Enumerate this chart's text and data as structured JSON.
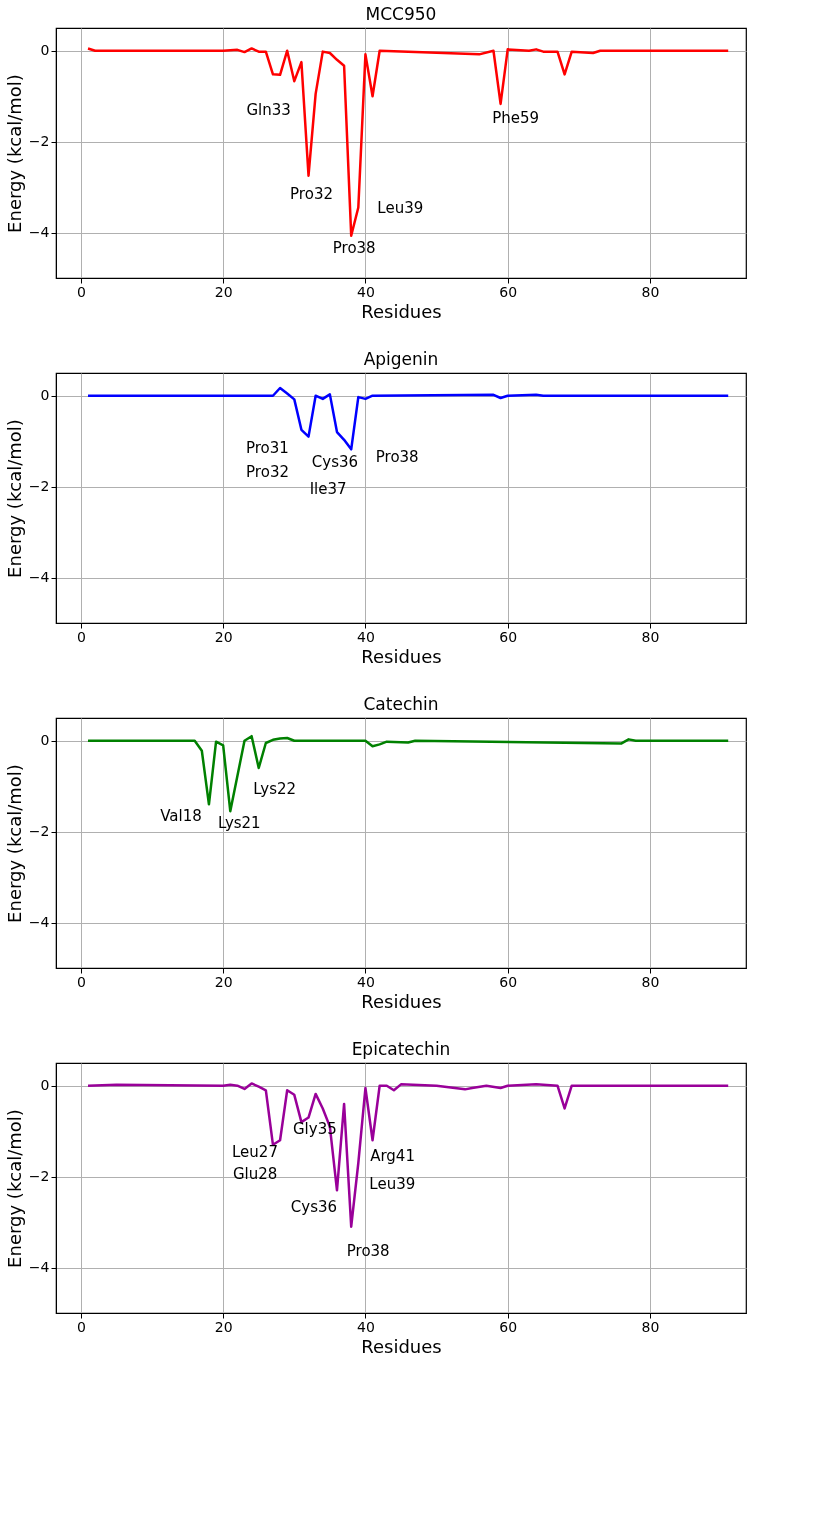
{
  "chart_data": [
    {
      "type": "line",
      "title": "MCC950",
      "xlabel": "Residues",
      "ylabel": "Energy (kcal/mol)",
      "xlim": [
        -3.5,
        93.5
      ],
      "ylim": [
        -5,
        0.5
      ],
      "xticks": [
        0,
        20,
        40,
        60,
        80
      ],
      "yticks": [
        0,
        -2,
        -4
      ],
      "grid": true,
      "series": [
        {
          "color": "#ff0000",
          "x": [
            1,
            2,
            20,
            22,
            23,
            24,
            25,
            26,
            27,
            28,
            29,
            30,
            31,
            32,
            33,
            34,
            35,
            36,
            37,
            38,
            39,
            40,
            41,
            42,
            56,
            58,
            59,
            60,
            63,
            64,
            65,
            67,
            68,
            69,
            72,
            73,
            91
          ],
          "values": [
            0.05,
            0,
            0,
            0.02,
            -0.03,
            0.05,
            -0.02,
            -0.02,
            -0.52,
            -0.53,
            0,
            -0.67,
            -0.25,
            -2.75,
            -0.95,
            -0.02,
            -0.05,
            -0.2,
            -0.33,
            -4.07,
            -3.45,
            -0.08,
            -1.0,
            0,
            -0.08,
            0,
            -1.17,
            0.03,
            0,
            0.03,
            -0.02,
            -0.02,
            -0.52,
            -0.02,
            -0.05,
            0,
            0
          ]
        }
      ],
      "annotations": [
        {
          "text": "Gln33",
          "x": 33,
          "y": -0.95
        },
        {
          "text": "Pro32",
          "x": 32,
          "y": -2.75
        },
        {
          "text": "Leu39",
          "x": 39,
          "y": -3.45
        },
        {
          "text": "Pro38",
          "x": 38,
          "y": -4.07
        },
        {
          "text": "Phe59",
          "x": 59,
          "y": -1.17
        }
      ]
    },
    {
      "type": "line",
      "title": "Apigenin",
      "xlabel": "Residues",
      "ylabel": "Energy (kcal/mol)",
      "xlim": [
        -3.5,
        93.5
      ],
      "ylim": [
        -5,
        0.5
      ],
      "xticks": [
        0,
        20,
        40,
        60,
        80
      ],
      "yticks": [
        0,
        -2,
        -4
      ],
      "grid": true,
      "series": [
        {
          "color": "#0000ff",
          "x": [
            1,
            27,
            28,
            29,
            30,
            31,
            32,
            33,
            34,
            35,
            36,
            37,
            38,
            39,
            40,
            41,
            58,
            59,
            60,
            64,
            65,
            91
          ],
          "values": [
            0,
            0,
            0.17,
            0.05,
            -0.08,
            -0.75,
            -0.9,
            0,
            -0.07,
            0.03,
            -0.8,
            -0.97,
            -1.18,
            -0.03,
            -0.07,
            0,
            0.02,
            -0.05,
            0,
            0.02,
            0,
            0
          ]
        }
      ],
      "annotations": [
        {
          "text": "Pro31",
          "x": 31,
          "y": -0.75
        },
        {
          "text": "Pro32",
          "x": 32,
          "y": -0.9
        },
        {
          "text": "Cys36",
          "x": 36,
          "y": -0.8
        },
        {
          "text": "Ile37",
          "x": 37,
          "y": -0.97
        },
        {
          "text": "Pro38",
          "x": 38,
          "y": -1.18
        }
      ]
    },
    {
      "type": "line",
      "title": "Catechin",
      "xlabel": "Residues",
      "ylabel": "Energy (kcal/mol)",
      "xlim": [
        -3.5,
        93.5
      ],
      "ylim": [
        -5,
        0.5
      ],
      "xticks": [
        0,
        20,
        40,
        60,
        80
      ],
      "yticks": [
        0,
        -2,
        -4
      ],
      "grid": true,
      "series": [
        {
          "color": "#008000",
          "x": [
            1,
            16,
            17,
            18,
            19,
            20,
            21,
            23,
            24,
            25,
            26,
            27,
            28,
            29,
            30,
            40,
            41,
            42,
            43,
            46,
            47,
            76,
            77,
            78,
            91
          ],
          "values": [
            0,
            0,
            -0.22,
            -1.4,
            -0.02,
            -0.1,
            -1.55,
            0,
            0.1,
            -0.6,
            -0.05,
            0.02,
            0.05,
            0.06,
            0,
            0,
            -0.12,
            -0.08,
            -0.02,
            -0.04,
            0,
            -0.06,
            0.03,
            0,
            0
          ]
        }
      ],
      "annotations": [
        {
          "text": "Val18",
          "x": 18,
          "y": -1.4
        },
        {
          "text": "Lys21",
          "x": 21,
          "y": -1.55
        },
        {
          "text": "Lys22",
          "x": 25,
          "y": -0.6
        }
      ]
    },
    {
      "type": "line",
      "title": "Epicatechin",
      "xlabel": "Residues",
      "ylabel": "Energy (kcal/mol)",
      "xlim": [
        -3.5,
        93.5
      ],
      "ylim": [
        -5,
        0.5
      ],
      "xticks": [
        0,
        20,
        40,
        60,
        80
      ],
      "yticks": [
        0,
        -2,
        -4
      ],
      "grid": true,
      "series": [
        {
          "color": "#990099",
          "x": [
            1,
            5,
            20,
            21,
            22,
            23,
            24,
            25,
            26,
            27,
            28,
            29,
            30,
            31,
            32,
            33,
            34,
            35,
            36,
            37,
            38,
            39,
            40,
            41,
            42,
            43,
            44,
            45,
            50,
            54,
            55,
            57,
            59,
            60,
            64,
            67,
            68,
            69,
            91
          ],
          "values": [
            0,
            0.02,
            0,
            0.02,
            0,
            -0.07,
            0.05,
            -0.02,
            -0.1,
            -1.3,
            -1.2,
            -0.1,
            -0.2,
            -0.8,
            -0.7,
            -0.18,
            -0.5,
            -0.9,
            -2.3,
            -0.4,
            -3.1,
            -1.7,
            -0.05,
            -1.2,
            0,
            0,
            -0.1,
            0.03,
            0,
            -0.08,
            -0.05,
            0,
            -0.05,
            0,
            0.03,
            0,
            -0.5,
            0,
            0
          ]
        }
      ],
      "annotations": [
        {
          "text": "Gly35",
          "x": 35,
          "y": -0.9
        },
        {
          "text": "Leu27",
          "x": 27,
          "y": -1.3
        },
        {
          "text": "Glu28",
          "x": 28,
          "y": -1.2
        },
        {
          "text": "Arg41",
          "x": 41,
          "y": -1.2
        },
        {
          "text": "Leu39",
          "x": 39,
          "y": -1.7
        },
        {
          "text": "Cys36",
          "x": 36,
          "y": -2.3
        },
        {
          "text": "Pro38",
          "x": 38,
          "y": -3.1
        }
      ]
    }
  ]
}
